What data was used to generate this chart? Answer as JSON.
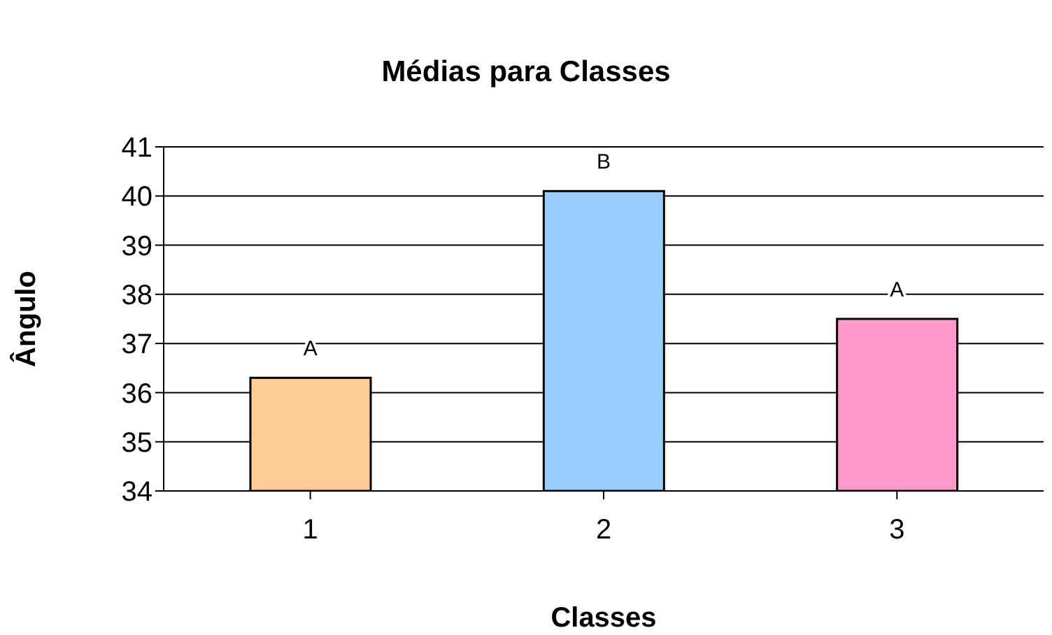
{
  "chart_data": {
    "type": "bar",
    "title": "Médias para Classes",
    "xlabel": "Classes",
    "ylabel": "Ângulo",
    "categories": [
      "1",
      "2",
      "3"
    ],
    "values": [
      36.3,
      40.1,
      37.5
    ],
    "colors": [
      "#ffcc99",
      "#99ccff",
      "#ff99cc"
    ],
    "ylim": [
      34,
      41
    ],
    "yticks": [
      34,
      35,
      36,
      37,
      38,
      39,
      40,
      41
    ],
    "grid": "y",
    "annotations": [
      {
        "text": "A",
        "x": "1",
        "y": 36.3
      },
      {
        "text": "B",
        "x": "2",
        "y": 40.1
      },
      {
        "text": "A",
        "x": "3",
        "y": 37.5
      }
    ]
  }
}
